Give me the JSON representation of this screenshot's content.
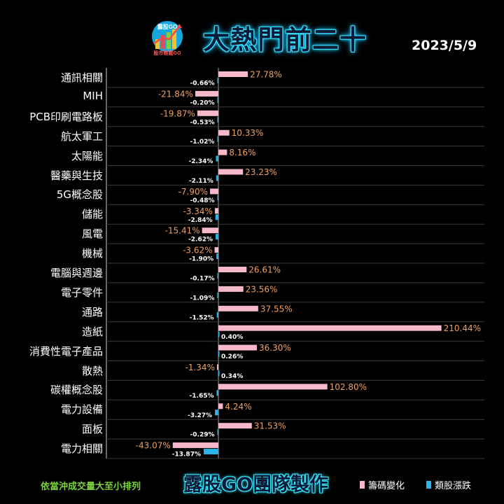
{
  "header": {
    "title": "大熱門前二十",
    "date": "2023/5/9",
    "logo_text_top": "露股GO",
    "logo_text_bottom": "股市輕鬆GO"
  },
  "footer": {
    "note": "依當沖成交量大至小排列",
    "brand": "露股GO團隊製作"
  },
  "colors": {
    "series1": "#f6b9c9",
    "series2": "#29b5ea",
    "label1": "#f0a15e",
    "label2": "#ffffff"
  },
  "chart_data": {
    "type": "bar",
    "orientation": "horizontal",
    "categories": [
      "通訊相關",
      "MIH",
      "PCB印刷電路板",
      "航太軍工",
      "太陽能",
      "醫藥與生技",
      "5G概念股",
      "儲能",
      "風電",
      "機械",
      "電腦與週邊",
      "電子零件",
      "通路",
      "造紙",
      "消費性電子產品",
      "散熱",
      "碳權概念股",
      "電力設備",
      "面板",
      "電力相關"
    ],
    "series": [
      {
        "name": "籌碼變化",
        "values": [
          27.78,
          -21.84,
          -19.87,
          10.33,
          8.16,
          23.23,
          -7.9,
          -3.34,
          -15.41,
          -3.62,
          26.61,
          23.56,
          37.55,
          210.44,
          36.3,
          -1.34,
          102.8,
          4.24,
          31.53,
          -43.07
        ],
        "labels": [
          "27.78%",
          "-21.84%",
          "-19.87%",
          "10.33%",
          "8.16%",
          "23.23%",
          "-7.90%",
          "-3.34%",
          "-15.41%",
          "-3.62%",
          "26.61%",
          "23.56%",
          "37.55%",
          "210.44%",
          "36.30%",
          "-1.34%",
          "102.80%",
          "4.24%",
          "31.53%",
          "-43.07%"
        ]
      },
      {
        "name": "類股漲跌",
        "values": [
          -0.66,
          -0.2,
          -0.53,
          -1.02,
          -2.34,
          -2.11,
          -0.48,
          -2.84,
          -2.62,
          -1.9,
          -0.17,
          -1.09,
          -1.52,
          0.4,
          0.26,
          0.34,
          -1.65,
          -3.27,
          -0.29,
          -13.87
        ],
        "labels": [
          "-0.66%",
          "-0.20%",
          "-0.53%",
          "-1.02%",
          "-2.34%",
          "-2.11%",
          "-0.48%",
          "-2.84%",
          "-2.62%",
          "-1.90%",
          "-0.17%",
          "-1.09%",
          "-1.52%",
          "0.40%",
          "0.26%",
          "0.34%",
          "-1.65%",
          "-3.27%",
          "-0.29%",
          "-13.87%"
        ]
      }
    ],
    "legend_placement": "bottom-right",
    "grid": false
  }
}
